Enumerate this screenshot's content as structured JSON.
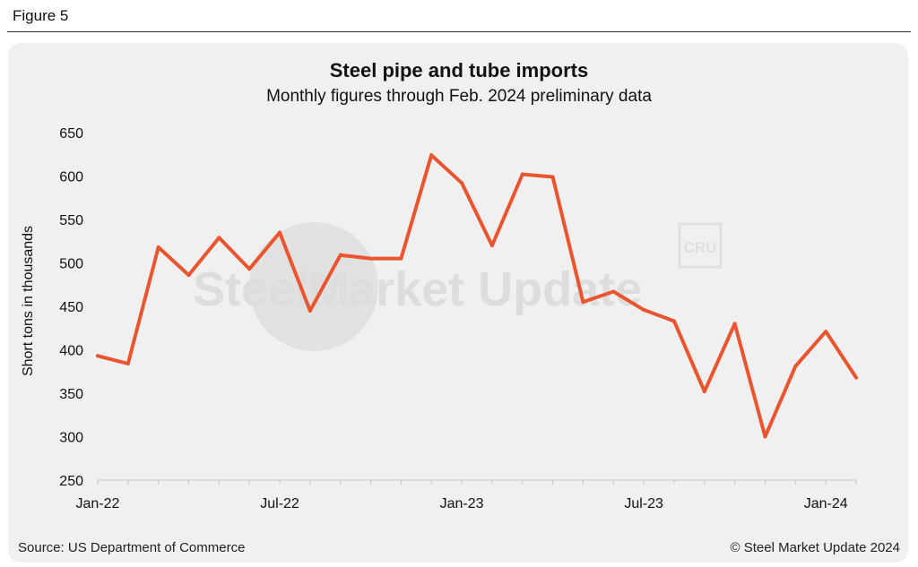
{
  "figure_label": "Figure 5",
  "source": "Source: US Department of Commerce",
  "copyright": "© Steel Market Update 2024",
  "watermark": {
    "brand": "SteelMarket Update",
    "badge": "CRU"
  },
  "colors": {
    "line": "#e8552f",
    "panel": "#f0f0f0"
  },
  "chart_data": {
    "type": "line",
    "title": "Steel pipe and tube imports",
    "subtitle": "Monthly figures through Feb. 2024 preliminary data",
    "ylabel": "Short tons in thousands",
    "ylim": [
      250,
      650
    ],
    "yticks": [
      250,
      300,
      350,
      400,
      450,
      500,
      550,
      600,
      650
    ],
    "x_tick_labels": [
      {
        "month_index": 0,
        "label": "Jan-22"
      },
      {
        "month_index": 6,
        "label": "Jul-22"
      },
      {
        "month_index": 12,
        "label": "Jan-23"
      },
      {
        "month_index": 18,
        "label": "Jul-23"
      },
      {
        "month_index": 24,
        "label": "Jan-24"
      }
    ],
    "categories": [
      "Jan-22",
      "Feb-22",
      "Mar-22",
      "Apr-22",
      "May-22",
      "Jun-22",
      "Jul-22",
      "Aug-22",
      "Sep-22",
      "Oct-22",
      "Nov-22",
      "Dec-22",
      "Jan-23",
      "Feb-23",
      "Mar-23",
      "Apr-23",
      "May-23",
      "Jun-23",
      "Jul-23",
      "Aug-23",
      "Sep-23",
      "Oct-23",
      "Nov-23",
      "Dec-23",
      "Jan-24",
      "Feb-24"
    ],
    "series": [
      {
        "values": [
          393,
          384,
          518,
          486,
          529,
          493,
          535,
          445,
          509,
          505,
          505,
          624,
          592,
          520,
          602,
          599,
          455,
          467,
          446,
          433,
          352,
          430,
          300,
          381,
          421,
          368
        ]
      }
    ],
    "grid": false
  }
}
